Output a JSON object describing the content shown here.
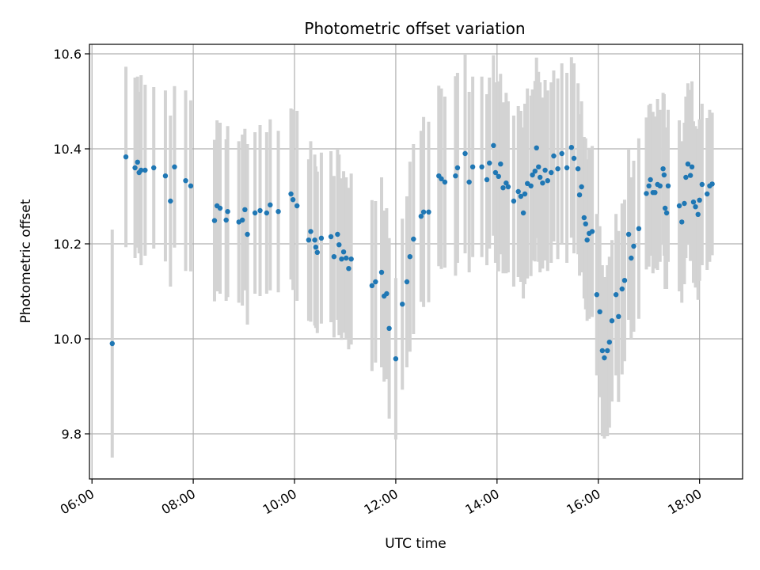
{
  "chart_data": {
    "type": "scatter",
    "title": "Photometric offset variation",
    "xlabel": "UTC time",
    "ylabel": "Photometric offset",
    "xlim": [
      5.95,
      18.85
    ],
    "ylim": [
      9.705,
      10.62
    ],
    "grid": true,
    "x_ticks": [
      {
        "value": 6,
        "label": "06:00"
      },
      {
        "value": 8,
        "label": "08:00"
      },
      {
        "value": 10,
        "label": "10:00"
      },
      {
        "value": 12,
        "label": "12:00"
      },
      {
        "value": 14,
        "label": "14:00"
      },
      {
        "value": 16,
        "label": "16:00"
      },
      {
        "value": 18,
        "label": "18:00"
      }
    ],
    "y_ticks": [
      {
        "value": 9.8,
        "label": "9.8"
      },
      {
        "value": 10.0,
        "label": "10.0"
      },
      {
        "value": 10.2,
        "label": "10.2"
      },
      {
        "value": 10.4,
        "label": "10.4"
      },
      {
        "value": 10.6,
        "label": "10.6"
      }
    ],
    "colors": {
      "point": "#1f77b4",
      "errorbar": "#d3d3d3",
      "grid": "#b0b0b0"
    },
    "points": [
      [
        6.4,
        9.99,
        0.24
      ],
      [
        6.67,
        10.383,
        0.19
      ],
      [
        6.85,
        10.36,
        0.19
      ],
      [
        6.9,
        10.372,
        0.18
      ],
      [
        6.93,
        10.35,
        0.17
      ],
      [
        6.97,
        10.355,
        0.2
      ],
      [
        7.05,
        10.355,
        0.18
      ],
      [
        7.22,
        10.36,
        0.17
      ],
      [
        7.45,
        10.343,
        0.18
      ],
      [
        7.55,
        10.29,
        0.18
      ],
      [
        7.63,
        10.362,
        0.17
      ],
      [
        7.85,
        10.333,
        0.19
      ],
      [
        7.95,
        10.322,
        0.18
      ],
      [
        8.42,
        10.249,
        0.17
      ],
      [
        8.47,
        10.28,
        0.18
      ],
      [
        8.53,
        10.275,
        0.18
      ],
      [
        8.65,
        10.25,
        0.17
      ],
      [
        8.68,
        10.268,
        0.18
      ],
      [
        8.9,
        10.246,
        0.17
      ],
      [
        8.97,
        10.25,
        0.18
      ],
      [
        9.02,
        10.272,
        0.17
      ],
      [
        9.07,
        10.22,
        0.19
      ],
      [
        9.22,
        10.265,
        0.17
      ],
      [
        9.32,
        10.27,
        0.18
      ],
      [
        9.45,
        10.265,
        0.17
      ],
      [
        9.52,
        10.282,
        0.18
      ],
      [
        9.68,
        10.268,
        0.17
      ],
      [
        9.93,
        10.305,
        0.18
      ],
      [
        9.97,
        10.293,
        0.19
      ],
      [
        10.05,
        10.28,
        0.2
      ],
      [
        10.28,
        10.208,
        0.17
      ],
      [
        10.32,
        10.226,
        0.19
      ],
      [
        10.4,
        10.208,
        0.18
      ],
      [
        10.42,
        10.193,
        0.17
      ],
      [
        10.45,
        10.182,
        0.17
      ],
      [
        10.53,
        10.212,
        0.18
      ],
      [
        10.72,
        10.215,
        0.18
      ],
      [
        10.78,
        10.173,
        0.17
      ],
      [
        10.85,
        10.22,
        0.18
      ],
      [
        10.88,
        10.198,
        0.19
      ],
      [
        10.93,
        10.168,
        0.17
      ],
      [
        10.97,
        10.183,
        0.17
      ],
      [
        11.02,
        10.17,
        0.17
      ],
      [
        11.07,
        10.148,
        0.17
      ],
      [
        11.12,
        10.168,
        0.18
      ],
      [
        11.53,
        10.112,
        0.18
      ],
      [
        11.6,
        10.12,
        0.17
      ],
      [
        11.72,
        10.14,
        0.2
      ],
      [
        11.77,
        10.09,
        0.18
      ],
      [
        11.82,
        10.095,
        0.18
      ],
      [
        11.87,
        10.022,
        0.19
      ],
      [
        12.0,
        9.958,
        0.17
      ],
      [
        12.13,
        10.073,
        0.18
      ],
      [
        12.22,
        10.12,
        0.18
      ],
      [
        12.28,
        10.173,
        0.2
      ],
      [
        12.35,
        10.21,
        0.2
      ],
      [
        12.5,
        10.258,
        0.18
      ],
      [
        12.55,
        10.267,
        0.2
      ],
      [
        12.65,
        10.267,
        0.19
      ],
      [
        12.85,
        10.343,
        0.19
      ],
      [
        12.9,
        10.337,
        0.19
      ],
      [
        12.97,
        10.33,
        0.18
      ],
      [
        13.18,
        10.343,
        0.21
      ],
      [
        13.22,
        10.36,
        0.2
      ],
      [
        13.37,
        10.39,
        0.21
      ],
      [
        13.45,
        10.33,
        0.19
      ],
      [
        13.52,
        10.362,
        0.19
      ],
      [
        13.7,
        10.362,
        0.19
      ],
      [
        13.8,
        10.335,
        0.18
      ],
      [
        13.85,
        10.37,
        0.18
      ],
      [
        13.93,
        10.407,
        0.19
      ],
      [
        13.97,
        10.35,
        0.19
      ],
      [
        14.03,
        10.342,
        0.2
      ],
      [
        14.07,
        10.368,
        0.19
      ],
      [
        14.12,
        10.318,
        0.18
      ],
      [
        14.18,
        10.328,
        0.19
      ],
      [
        14.22,
        10.32,
        0.18
      ],
      [
        14.33,
        10.29,
        0.18
      ],
      [
        14.42,
        10.31,
        0.18
      ],
      [
        14.47,
        10.3,
        0.18
      ],
      [
        14.52,
        10.265,
        0.18
      ],
      [
        14.55,
        10.305,
        0.19
      ],
      [
        14.6,
        10.327,
        0.2
      ],
      [
        14.67,
        10.322,
        0.19
      ],
      [
        14.7,
        10.345,
        0.18
      ],
      [
        14.75,
        10.353,
        0.19
      ],
      [
        14.78,
        10.402,
        0.19
      ],
      [
        14.82,
        10.362,
        0.2
      ],
      [
        14.85,
        10.34,
        0.2
      ],
      [
        14.9,
        10.328,
        0.18
      ],
      [
        14.95,
        10.355,
        0.19
      ],
      [
        15.0,
        10.333,
        0.19
      ],
      [
        15.07,
        10.35,
        0.19
      ],
      [
        15.12,
        10.385,
        0.18
      ],
      [
        15.2,
        10.358,
        0.19
      ],
      [
        15.28,
        10.39,
        0.19
      ],
      [
        15.38,
        10.36,
        0.2
      ],
      [
        15.47,
        10.403,
        0.19
      ],
      [
        15.52,
        10.38,
        0.2
      ],
      [
        15.6,
        10.358,
        0.18
      ],
      [
        15.63,
        10.303,
        0.17
      ],
      [
        15.67,
        10.32,
        0.18
      ],
      [
        15.72,
        10.255,
        0.17
      ],
      [
        15.75,
        10.242,
        0.18
      ],
      [
        15.78,
        10.208,
        0.17
      ],
      [
        15.82,
        10.222,
        0.18
      ],
      [
        15.88,
        10.226,
        0.18
      ],
      [
        15.97,
        10.093,
        0.17
      ],
      [
        16.03,
        10.057,
        0.18
      ],
      [
        16.08,
        9.975,
        0.18
      ],
      [
        16.12,
        9.96,
        0.17
      ],
      [
        16.18,
        9.975,
        0.18
      ],
      [
        16.22,
        9.993,
        0.18
      ],
      [
        16.27,
        10.038,
        0.17
      ],
      [
        16.35,
        10.093,
        0.17
      ],
      [
        16.4,
        10.047,
        0.18
      ],
      [
        16.47,
        10.105,
        0.18
      ],
      [
        16.52,
        10.123,
        0.17
      ],
      [
        16.6,
        10.22,
        0.18
      ],
      [
        16.65,
        10.17,
        0.17
      ],
      [
        16.7,
        10.195,
        0.18
      ],
      [
        16.8,
        10.232,
        0.19
      ],
      [
        16.95,
        10.306,
        0.16
      ],
      [
        17.0,
        10.322,
        0.17
      ],
      [
        17.03,
        10.335,
        0.16
      ],
      [
        17.08,
        10.308,
        0.17
      ],
      [
        17.12,
        10.308,
        0.16
      ],
      [
        17.17,
        10.325,
        0.18
      ],
      [
        17.22,
        10.322,
        0.16
      ],
      [
        17.28,
        10.358,
        0.16
      ],
      [
        17.3,
        10.345,
        0.17
      ],
      [
        17.32,
        10.275,
        0.17
      ],
      [
        17.35,
        10.265,
        0.16
      ],
      [
        17.38,
        10.322,
        0.16
      ],
      [
        17.6,
        10.28,
        0.18
      ],
      [
        17.65,
        10.246,
        0.17
      ],
      [
        17.7,
        10.285,
        0.17
      ],
      [
        17.73,
        10.34,
        0.17
      ],
      [
        17.77,
        10.368,
        0.17
      ],
      [
        17.82,
        10.344,
        0.18
      ],
      [
        17.85,
        10.362,
        0.18
      ],
      [
        17.88,
        10.288,
        0.17
      ],
      [
        17.92,
        10.278,
        0.17
      ],
      [
        17.97,
        10.262,
        0.18
      ],
      [
        18.0,
        10.292,
        0.17
      ],
      [
        18.05,
        10.325,
        0.17
      ],
      [
        18.15,
        10.305,
        0.16
      ],
      [
        18.2,
        10.322,
        0.16
      ],
      [
        18.25,
        10.326,
        0.15
      ]
    ]
  }
}
